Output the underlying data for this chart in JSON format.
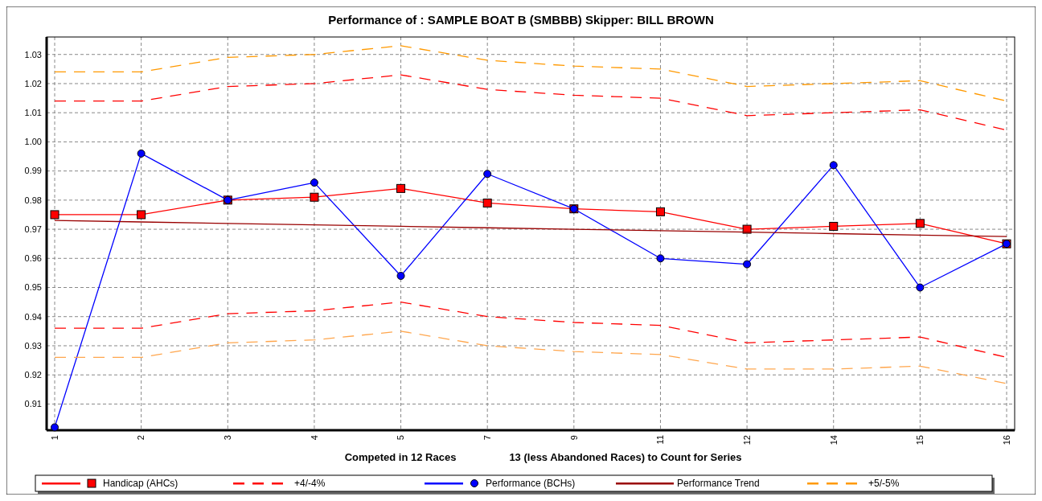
{
  "chart_data": {
    "type": "line",
    "title": "Performance of :  SAMPLE BOAT B (SMBBB)    Skipper: BILL   BROWN",
    "annotations": [
      "Competed in 12 Races",
      "13 (less Abandoned Races) to Count for Series"
    ],
    "categories": [
      "1",
      "2",
      "3",
      "4",
      "5",
      "7",
      "9",
      "11",
      "12",
      "14",
      "15",
      "16"
    ],
    "ylim": [
      0.901,
      1.036
    ],
    "yticks": [
      0.91,
      0.92,
      0.93,
      0.94,
      0.95,
      0.96,
      0.97,
      0.98,
      0.99,
      {
        "value": 1.0,
        "label": "1.00"
      },
      1.01,
      1.02,
      1.03
    ],
    "grid": true,
    "legend": "bottom",
    "series": [
      {
        "name": "Handicap (AHCs)",
        "color": "#ff0000",
        "marker": "square",
        "line_style": "solid",
        "values": [
          0.975,
          0.975,
          0.98,
          0.981,
          0.984,
          0.979,
          0.977,
          0.976,
          0.97,
          0.971,
          0.972,
          0.965
        ]
      },
      {
        "name": "+4/-4%",
        "color": "#ff0000",
        "marker": "none",
        "line_style": "dashed",
        "values": [
          1.014,
          1.014,
          1.019,
          1.02,
          1.023,
          1.018,
          1.016,
          1.015,
          1.009,
          1.01,
          1.011,
          1.004
        ]
      },
      {
        "color": "#ff0000",
        "marker": "none",
        "line_style": "dashed",
        "values": [
          0.936,
          0.936,
          0.941,
          0.942,
          0.945,
          0.94,
          0.938,
          0.937,
          0.931,
          0.932,
          0.933,
          0.926
        ]
      },
      {
        "name": "Performance (BCHs)",
        "color": "#0000ff",
        "marker": "circle",
        "line_style": "solid",
        "values": [
          0.902,
          0.996,
          0.98,
          0.986,
          0.954,
          0.989,
          0.977,
          0.96,
          0.958,
          0.992,
          0.95,
          0.965
        ]
      },
      {
        "name": "Performance Trend",
        "color": "#990000",
        "marker": "none",
        "line_style": "solid",
        "values": [
          0.973,
          0.9725,
          0.972,
          0.9715,
          0.971,
          0.9705,
          0.97,
          0.9695,
          0.969,
          0.9685,
          0.968,
          0.9675
        ]
      },
      {
        "name": "+5/-5%",
        "color": "#ff9900",
        "marker": "none",
        "line_style": "dashed",
        "values": [
          1.024,
          1.024,
          1.029,
          1.03,
          1.033,
          1.028,
          1.026,
          1.025,
          1.019,
          1.02,
          1.021,
          1.014
        ]
      },
      {
        "color": "#ffa64d",
        "marker": "none",
        "line_style": "dashed",
        "values": [
          0.926,
          0.926,
          0.931,
          0.932,
          0.935,
          0.93,
          0.928,
          0.927,
          0.922,
          0.922,
          0.923,
          0.917
        ]
      }
    ]
  }
}
